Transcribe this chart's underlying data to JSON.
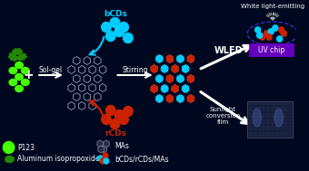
{
  "bg_color": "#000820",
  "bcd_color": "#00ccff",
  "rcd_color": "#cc2200",
  "green_bright": "#44ff00",
  "green_dark": "#228800",
  "arrow_color": "#ffffff",
  "wled_label": "WLED",
  "sunlight_label": "Sunlight\nconversion\nfilm",
  "solgel_label": "Sol-gel",
  "stirring_label": "Stirring",
  "white_emit_label": "White light-emitting",
  "uvchip_label": "UV chip",
  "p123_label": "P123",
  "aliso_label": "Aluminum isopropoxide",
  "mas_label": "MAs",
  "bcdrcdmas_label": "bCDs/rCDs/MAs",
  "bcd_label": "bCDs",
  "rcd_label": "rCDs"
}
